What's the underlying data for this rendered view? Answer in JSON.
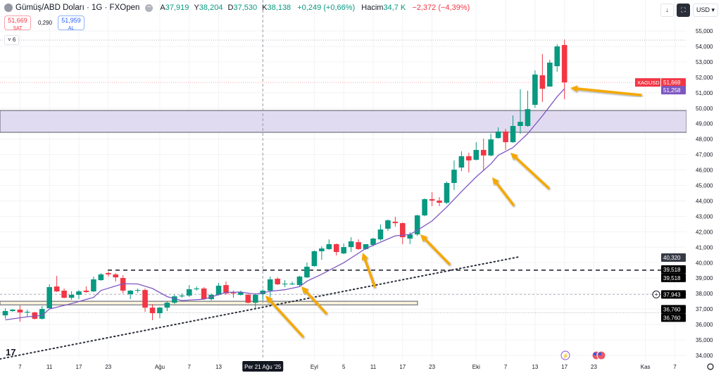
{
  "header": {
    "title": "Gümüş/ABD Doları · 1G · FXOpen",
    "ohlc": {
      "o_label": "A",
      "o": "37,919",
      "h_label": "Y",
      "h": "38,204",
      "l_label": "D",
      "l": "37,530",
      "c_label": "K",
      "c": "38,138",
      "change": "+0,249 (+0,66%)",
      "volume_label": "Hacim",
      "volume": "34,7 K",
      "volume_change": "−2,372 (−4,39%)"
    },
    "sell_price": "51,669",
    "sell_label": "SAT",
    "spread": "0,290",
    "buy_price": "51,959",
    "buy_label": "AL",
    "indicators_toggle": "˅ 6"
  },
  "toolbar": {
    "down_icon": "↓",
    "fullscreen_icon": "⛶",
    "currency": "USD ▾"
  },
  "colors": {
    "up": "#089981",
    "down": "#f23645",
    "ma": "#7e57c2",
    "zone": "#e1dbf1",
    "arrow": "#f5a800",
    "support_zone": "#fdf6dc"
  },
  "chart_data": {
    "type": "candlestick",
    "symbol": "XAGUSD",
    "ylim": [
      34,
      55.6
    ],
    "y_ticks": [
      "34,000",
      "35,000",
      "36,000",
      "37,000",
      "38,000",
      "39,000",
      "40,000",
      "41,000",
      "42,000",
      "43,000",
      "44,000",
      "45,000",
      "46,000",
      "47,000",
      "48,000",
      "49,000",
      "50,000",
      "51,000",
      "52,000",
      "53,000",
      "54,000",
      "55,000"
    ],
    "x_ticks": [
      {
        "date": "2025-07-07",
        "label": "7"
      },
      {
        "date": "2025-07-11",
        "label": "11"
      },
      {
        "date": "2025-07-17",
        "label": "17"
      },
      {
        "date": "2025-07-23",
        "label": "23"
      },
      {
        "date": "2025-08-01",
        "label": "Ağu"
      },
      {
        "date": "2025-08-07",
        "label": "7"
      },
      {
        "date": "2025-08-13",
        "label": "13"
      },
      {
        "date": "2025-09-01",
        "label": "Eyl"
      },
      {
        "date": "2025-09-05",
        "label": "5"
      },
      {
        "date": "2025-09-11",
        "label": "11"
      },
      {
        "date": "2025-09-17",
        "label": "17"
      },
      {
        "date": "2025-09-23",
        "label": "23"
      },
      {
        "date": "2025-10-01",
        "label": "Eki"
      },
      {
        "date": "2025-10-07",
        "label": "7"
      },
      {
        "date": "2025-10-13",
        "label": "13"
      },
      {
        "date": "2025-10-17",
        "label": "17"
      },
      {
        "date": "2025-10-23",
        "label": "23"
      },
      {
        "date": "2025-11-03",
        "label": "Kas"
      },
      {
        "date": "2025-11-07",
        "label": "7"
      }
    ],
    "crosshair": {
      "date": "2025-08-21",
      "label": "Per 21 Ağu '25"
    },
    "candles": [
      [
        "2025-07-03",
        36.59,
        37.05,
        36.37,
        36.87
      ],
      [
        "2025-07-04",
        36.87,
        37.0,
        36.82,
        36.96
      ],
      [
        "2025-07-07",
        36.96,
        37.23,
        36.18,
        36.78
      ],
      [
        "2025-07-08",
        36.78,
        36.96,
        36.5,
        36.82
      ],
      [
        "2025-07-09",
        36.78,
        36.82,
        36.32,
        36.37
      ],
      [
        "2025-07-10",
        36.37,
        37.19,
        36.32,
        37.0
      ],
      [
        "2025-07-11",
        37.05,
        38.6,
        37.05,
        38.42
      ],
      [
        "2025-07-14",
        38.46,
        39.15,
        38.1,
        38.14
      ],
      [
        "2025-07-15",
        38.19,
        38.33,
        37.69,
        37.73
      ],
      [
        "2025-07-16",
        37.73,
        38.14,
        37.6,
        37.92
      ],
      [
        "2025-07-17",
        37.92,
        38.23,
        37.64,
        38.14
      ],
      [
        "2025-07-18",
        38.19,
        38.46,
        38.05,
        38.1
      ],
      [
        "2025-07-21",
        38.14,
        39.1,
        38.1,
        38.92
      ],
      [
        "2025-07-22",
        38.87,
        39.33,
        38.83,
        39.24
      ],
      [
        "2025-07-23",
        39.33,
        39.42,
        39.1,
        39.24
      ],
      [
        "2025-07-24",
        39.24,
        39.33,
        38.78,
        39.05
      ],
      [
        "2025-07-25",
        39.01,
        39.19,
        38.01,
        38.19
      ],
      [
        "2025-07-28",
        37.96,
        38.23,
        37.64,
        38.19
      ],
      [
        "2025-07-29",
        38.19,
        38.33,
        38.05,
        38.23
      ],
      [
        "2025-07-30",
        38.23,
        38.33,
        36.82,
        37.09
      ],
      [
        "2025-07-31",
        37.09,
        37.32,
        36.28,
        36.73
      ],
      [
        "2025-08-01",
        36.73,
        37.14,
        36.41,
        37.09
      ],
      [
        "2025-08-04",
        37.09,
        37.5,
        36.87,
        37.41
      ],
      [
        "2025-08-05",
        37.41,
        37.92,
        37.32,
        37.82
      ],
      [
        "2025-08-06",
        37.82,
        38.01,
        37.73,
        37.87
      ],
      [
        "2025-08-07",
        37.87,
        38.55,
        37.78,
        38.28
      ],
      [
        "2025-08-08",
        38.28,
        38.46,
        38.19,
        38.33
      ],
      [
        "2025-08-11",
        38.33,
        38.42,
        37.6,
        37.64
      ],
      [
        "2025-08-12",
        37.64,
        38.01,
        37.55,
        37.92
      ],
      [
        "2025-08-13",
        37.92,
        38.69,
        37.87,
        38.51
      ],
      [
        "2025-08-14",
        38.55,
        38.78,
        37.92,
        38.01
      ],
      [
        "2025-08-15",
        38.05,
        38.19,
        37.73,
        38.01
      ],
      [
        "2025-08-18",
        37.92,
        38.19,
        37.87,
        38.1
      ],
      [
        "2025-08-19",
        37.92,
        38.01,
        37.37,
        37.41
      ],
      [
        "2025-08-20",
        37.41,
        38.01,
        37.05,
        37.92
      ],
      [
        "2025-08-21",
        37.96,
        38.28,
        37.55,
        38.19
      ],
      [
        "2025-08-22",
        38.19,
        39.1,
        37.78,
        38.92
      ],
      [
        "2025-08-25",
        38.96,
        39.05,
        38.55,
        38.6
      ],
      [
        "2025-08-26",
        38.6,
        38.87,
        38.42,
        38.64
      ],
      [
        "2025-08-27",
        38.6,
        38.78,
        38.55,
        38.64
      ],
      [
        "2025-08-28",
        38.55,
        39.15,
        38.46,
        39.1
      ],
      [
        "2025-08-29",
        39.05,
        40.01,
        39.01,
        39.74
      ],
      [
        "2025-09-01",
        39.78,
        40.79,
        39.74,
        40.74
      ],
      [
        "2025-09-02",
        40.74,
        41.06,
        40.19,
        40.92
      ],
      [
        "2025-09-03",
        40.88,
        41.51,
        40.83,
        41.2
      ],
      [
        "2025-09-04",
        41.2,
        41.24,
        40.47,
        40.69
      ],
      [
        "2025-09-05",
        40.6,
        41.24,
        40.56,
        41.01
      ],
      [
        "2025-09-08",
        41.01,
        41.65,
        40.69,
        41.38
      ],
      [
        "2025-09-09",
        41.33,
        41.51,
        40.83,
        40.88
      ],
      [
        "2025-09-10",
        40.88,
        41.2,
        40.83,
        41.2
      ],
      [
        "2025-09-11",
        41.15,
        41.61,
        41.06,
        41.56
      ],
      [
        "2025-09-12",
        41.51,
        42.47,
        41.42,
        42.15
      ],
      [
        "2025-09-15",
        42.2,
        42.79,
        42.06,
        42.74
      ],
      [
        "2025-09-16",
        42.65,
        42.97,
        42.33,
        42.56
      ],
      [
        "2025-09-17",
        42.56,
        42.61,
        41.2,
        41.65
      ],
      [
        "2025-09-18",
        41.56,
        41.97,
        41.2,
        41.83
      ],
      [
        "2025-09-19",
        41.83,
        43.11,
        41.74,
        43.06
      ],
      [
        "2025-09-22",
        43.06,
        44.16,
        43.02,
        44.11
      ],
      [
        "2025-09-23",
        44.11,
        44.57,
        43.66,
        44.02
      ],
      [
        "2025-09-24",
        44.02,
        44.25,
        43.66,
        43.88
      ],
      [
        "2025-09-25",
        43.88,
        45.25,
        43.79,
        45.16
      ],
      [
        "2025-09-26",
        45.16,
        46.62,
        44.7,
        46.02
      ],
      [
        "2025-09-29",
        46.16,
        47.21,
        45.93,
        46.89
      ],
      [
        "2025-09-30",
        46.89,
        47.12,
        45.84,
        46.62
      ],
      [
        "2025-10-01",
        46.66,
        47.8,
        46.62,
        47.3
      ],
      [
        "2025-10-02",
        47.3,
        48.03,
        45.93,
        46.94
      ],
      [
        "2025-10-03",
        46.94,
        48.35,
        46.89,
        47.98
      ],
      [
        "2025-10-06",
        48.07,
        48.76,
        48.03,
        48.49
      ],
      [
        "2025-10-07",
        48.49,
        48.67,
        47.3,
        47.8
      ],
      [
        "2025-10-08",
        47.8,
        49.53,
        47.76,
        48.85
      ],
      [
        "2025-10-09",
        48.85,
        51.22,
        48.35,
        49.12
      ],
      [
        "2025-10-10",
        48.85,
        51.13,
        48.8,
        49.94
      ],
      [
        "2025-10-13",
        50.22,
        52.45,
        50.03,
        52.18
      ],
      [
        "2025-10-14",
        52.13,
        53.5,
        50.4,
        51.26
      ],
      [
        "2025-10-15",
        51.4,
        53.13,
        51.4,
        52.95
      ],
      [
        "2025-10-16",
        52.72,
        54.13,
        52.36,
        54.0
      ],
      [
        "2025-10-17",
        54.09,
        54.45,
        50.58,
        51.669
      ]
    ],
    "moving_average": {
      "last_value": "51,258",
      "points": [
        [
          "2025-07-03",
          36.3
        ],
        [
          "2025-07-08",
          36.5
        ],
        [
          "2025-07-10",
          36.59
        ],
        [
          "2025-07-11",
          37.0
        ],
        [
          "2025-07-16",
          37.35
        ],
        [
          "2025-07-21",
          37.75
        ],
        [
          "2025-07-22",
          38.2
        ],
        [
          "2025-07-25",
          38.64
        ],
        [
          "2025-07-29",
          38.62
        ],
        [
          "2025-07-31",
          38.33
        ],
        [
          "2025-08-04",
          37.8
        ],
        [
          "2025-08-06",
          37.55
        ],
        [
          "2025-08-11",
          37.64
        ],
        [
          "2025-08-14",
          38.08
        ],
        [
          "2025-08-18",
          38.1
        ],
        [
          "2025-08-20",
          37.96
        ],
        [
          "2025-08-22",
          38.15
        ],
        [
          "2025-08-26",
          38.25
        ],
        [
          "2025-08-28",
          38.45
        ],
        [
          "2025-08-29",
          38.8
        ],
        [
          "2025-09-02",
          39.25
        ],
        [
          "2025-09-05",
          40.0
        ],
        [
          "2025-09-10",
          40.92
        ],
        [
          "2025-09-16",
          41.74
        ],
        [
          "2025-09-18",
          41.83
        ],
        [
          "2025-09-19",
          42.1
        ],
        [
          "2025-09-23",
          42.7
        ],
        [
          "2025-09-25",
          43.6
        ],
        [
          "2025-09-29",
          44.6
        ],
        [
          "2025-10-01",
          45.55
        ],
        [
          "2025-10-03",
          46.4
        ],
        [
          "2025-10-06",
          46.95
        ],
        [
          "2025-10-08",
          47.45
        ],
        [
          "2025-10-09",
          47.9
        ],
        [
          "2025-10-10",
          48.35
        ],
        [
          "2025-10-14",
          49.5
        ],
        [
          "2025-10-16",
          50.75
        ],
        [
          "2025-10-17",
          51.258
        ]
      ]
    },
    "zones": [
      {
        "top": 49.85,
        "bottom": 48.44,
        "color": "#e1dbf1"
      },
      {
        "top": 37.5,
        "bottom": 37.27,
        "color": "#fdf6dc"
      }
    ],
    "levels": [
      {
        "price": 39.518,
        "label": "39,518",
        "style": "dashed"
      },
      {
        "price": 37.943,
        "label": "37,943",
        "style": "light-dashed"
      },
      {
        "price": 36.76,
        "label": "36,760",
        "style": "dotted"
      }
    ],
    "trendline_label": "40,320",
    "price_tag": {
      "symbol": "XAGUSD",
      "value": "51,669"
    }
  },
  "events": {
    "icons": [
      "lightning-icon",
      "us-flag-icon"
    ]
  }
}
